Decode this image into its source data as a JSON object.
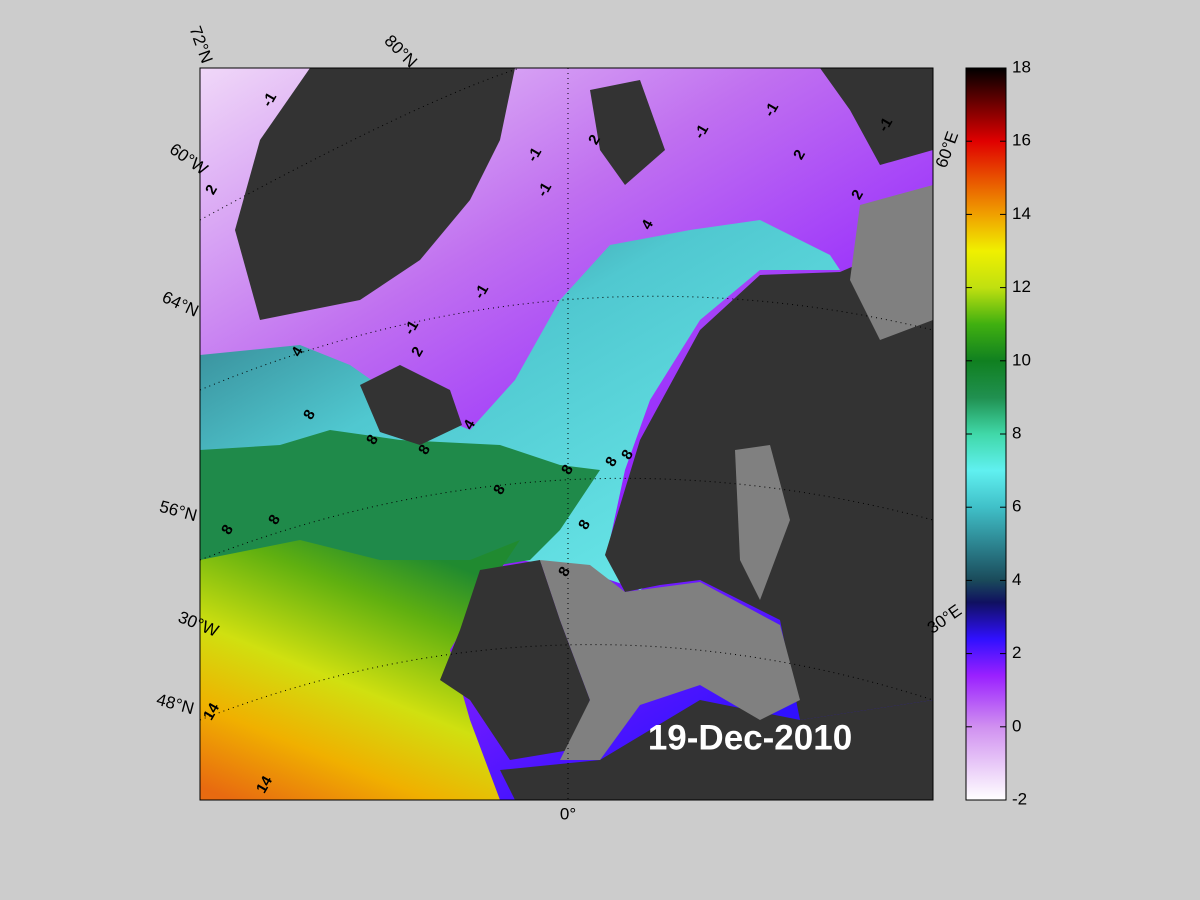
{
  "map": {
    "date_label": "19-Dec-2010",
    "graticule_labels": [
      "72°N",
      "80°N",
      "60°W",
      "64°N",
      "56°N",
      "30°W",
      "48°N",
      "0°",
      "30°E",
      "60°E"
    ],
    "contour_labels": [
      -1,
      -1,
      -1,
      -1,
      -1,
      -1,
      -1,
      -1,
      2,
      2,
      2,
      2,
      2,
      4,
      4,
      4,
      8,
      8,
      8,
      8,
      8,
      8,
      8,
      8,
      8,
      8,
      8,
      14,
      14
    ]
  },
  "colorbar": {
    "lim": [
      -2,
      18
    ],
    "ticks": [
      -2,
      0,
      2,
      4,
      6,
      8,
      10,
      12,
      14,
      16,
      18
    ]
  }
}
